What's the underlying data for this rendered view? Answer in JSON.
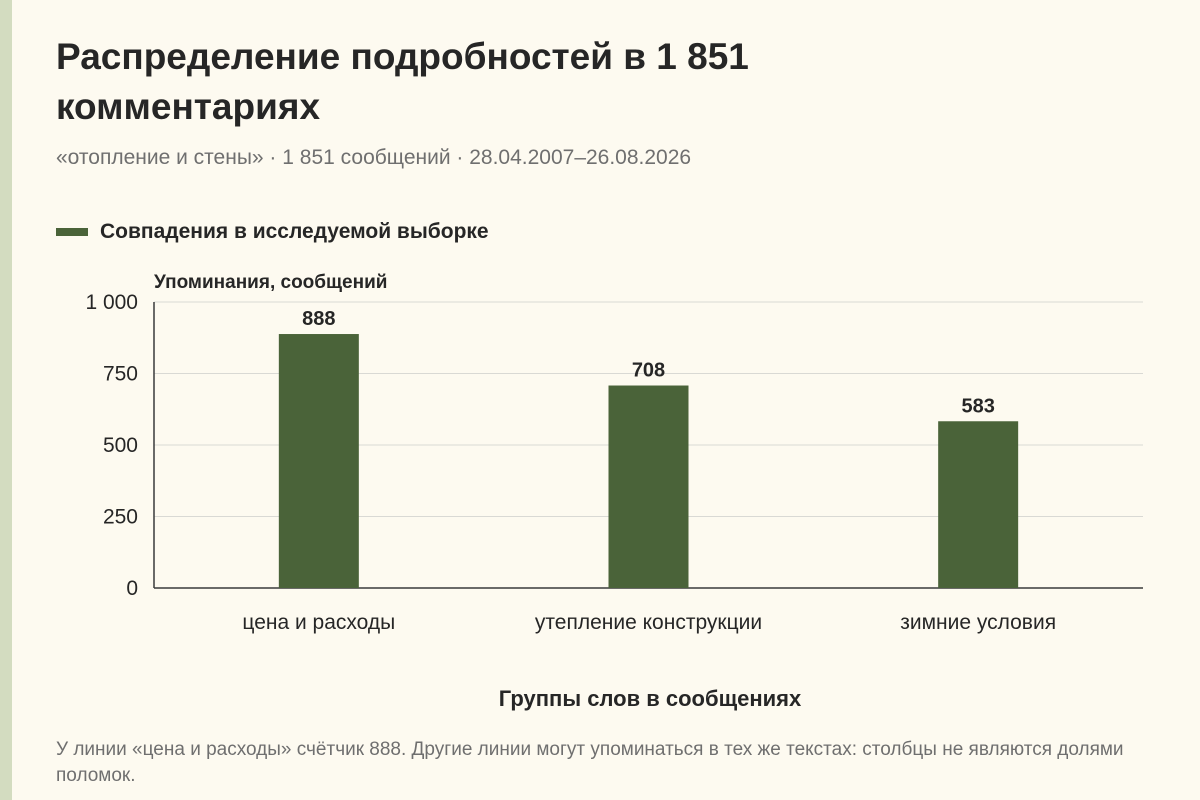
{
  "title": "Распределение подробностей в 1 851 комментариях",
  "subtitle": "«отопление и стены» · 1 851 сообщений · 28.04.2007–26.08.2026",
  "legend": {
    "label": "Совпадения в исследуемой выборке",
    "color": "#4a6339"
  },
  "footnote": "У линии «цена и расходы» счётчик 888. Другие линии могут упоминаться в тех же текстах: столбцы не являются долями поломок.",
  "chart_data": {
    "type": "bar",
    "title": "Распределение подробностей в 1 851 комментариях",
    "xlabel": "Группы слов в сообщениях",
    "ylabel": "Упоминания, сообщений",
    "categories": [
      "цена и расходы",
      "утепление конструкции",
      "зимние условия"
    ],
    "series": [
      {
        "name": "Совпадения в исследуемой выборке",
        "values": [
          888,
          708,
          583
        ],
        "color": "#4a6339"
      }
    ],
    "value_labels": [
      "888",
      "708",
      "583"
    ],
    "ylim": [
      0,
      1000
    ],
    "yticks": [
      0,
      250,
      500,
      750,
      1000
    ],
    "ytick_labels": [
      "0",
      "250",
      "500",
      "750",
      "1 000"
    ],
    "grid": true,
    "legend_position": "top-left"
  }
}
